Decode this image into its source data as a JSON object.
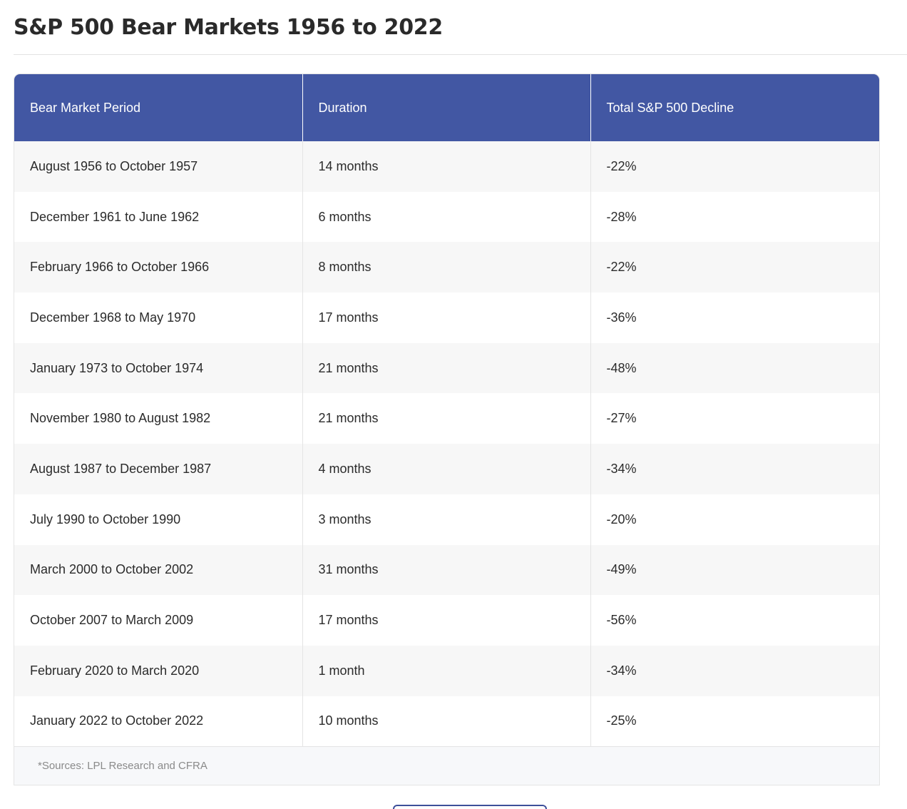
{
  "title": "S&P 500 Bear Markets 1956 to 2022",
  "table": {
    "headers": [
      "Bear Market Period",
      "Duration",
      "Total S&P 500 Decline"
    ],
    "rows": [
      [
        "August 1956 to October 1957",
        "14 months",
        "-22%"
      ],
      [
        "December 1961 to June 1962",
        "6 months",
        "-28%"
      ],
      [
        "February 1966 to October 1966",
        "8 months",
        "-22%"
      ],
      [
        "December 1968 to May 1970",
        "17 months",
        "-36%"
      ],
      [
        "January 1973 to October 1974",
        "21 months",
        "-48%"
      ],
      [
        "November 1980 to August 1982",
        "21 months",
        "-27%"
      ],
      [
        "August 1987 to December 1987",
        "4 months",
        "-34%"
      ],
      [
        "July 1990 to October 1990",
        "3 months",
        "-20%"
      ],
      [
        "March 2000 to October 2002",
        "31 months",
        "-49%"
      ],
      [
        "October 2007 to March 2009",
        "17 months",
        "-56%"
      ],
      [
        "February 2020 to March 2020",
        "1 month",
        "-34%"
      ],
      [
        "January 2022 to October 2022",
        "10 months",
        "-25%"
      ]
    ],
    "source": "*Sources: LPL Research and CFRA"
  },
  "colors": {
    "header_bg": "#4257a3",
    "header_text": "#ffffff",
    "row_alt_bg": "#f7f7f7",
    "button_border": "#3d4f9a"
  }
}
